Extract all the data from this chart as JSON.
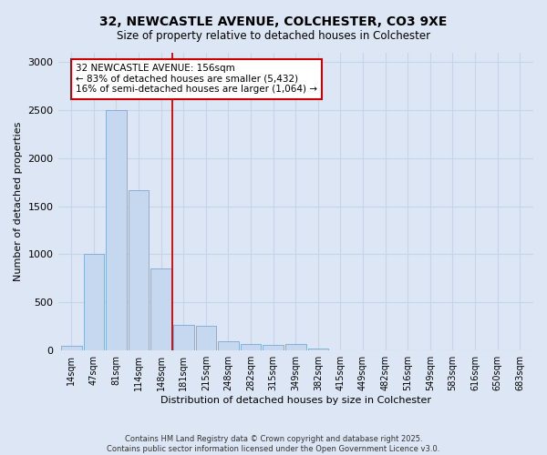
{
  "title_line1": "32, NEWCASTLE AVENUE, COLCHESTER, CO3 9XE",
  "title_line2": "Size of property relative to detached houses in Colchester",
  "xlabel": "Distribution of detached houses by size in Colchester",
  "ylabel": "Number of detached properties",
  "categories": [
    "14sqm",
    "47sqm",
    "81sqm",
    "114sqm",
    "148sqm",
    "181sqm",
    "215sqm",
    "248sqm",
    "282sqm",
    "315sqm",
    "349sqm",
    "382sqm",
    "415sqm",
    "449sqm",
    "482sqm",
    "516sqm",
    "549sqm",
    "583sqm",
    "616sqm",
    "650sqm",
    "683sqm"
  ],
  "values": [
    50,
    1000,
    2500,
    1670,
    850,
    270,
    255,
    100,
    70,
    60,
    65,
    20,
    0,
    0,
    0,
    0,
    0,
    0,
    0,
    0,
    0
  ],
  "bar_color": "#c5d8f0",
  "bar_edge_color": "#7aaad0",
  "grid_color": "#c8d4e8",
  "vline_x": 4.5,
  "vline_color": "#cc0000",
  "annotation_text": "32 NEWCASTLE AVENUE: 156sqm\n← 83% of detached houses are smaller (5,432)\n16% of semi-detached houses are larger (1,064) →",
  "annotation_box_color": "#cc0000",
  "ylim": [
    0,
    3100
  ],
  "yticks": [
    0,
    500,
    1000,
    1500,
    2000,
    2500,
    3000
  ],
  "background_color": "#dce6f5",
  "fig_bg_color": "#dce6f5",
  "footer_line1": "Contains HM Land Registry data © Crown copyright and database right 2025.",
  "footer_line2": "Contains public sector information licensed under the Open Government Licence v3.0."
}
